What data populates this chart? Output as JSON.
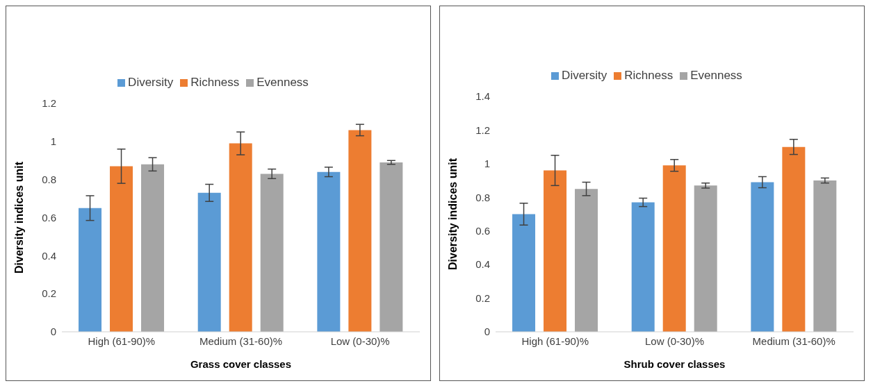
{
  "chart_data": [
    {
      "type": "bar",
      "xlabel": "Grass cover classes",
      "ylabel": "Diversity indices unit",
      "categories": [
        "High (61-90)%",
        "Medium (31-60)%",
        "Low (0-30)%"
      ],
      "ylim": [
        0,
        1.2
      ],
      "yticks": [
        0,
        0.2,
        0.4,
        0.6,
        0.8,
        1,
        1.2
      ],
      "grid": false,
      "legend": "top",
      "series": [
        {
          "name": "Diversity",
          "color": "#5b9bd5",
          "values": [
            0.65,
            0.73,
            0.84
          ],
          "errors": [
            0.065,
            0.045,
            0.025
          ]
        },
        {
          "name": "Richness",
          "color": "#ed7d31",
          "values": [
            0.87,
            0.99,
            1.06
          ],
          "errors": [
            0.09,
            0.06,
            0.03
          ]
        },
        {
          "name": "Evenness",
          "color": "#a5a5a5",
          "values": [
            0.88,
            0.83,
            0.89
          ],
          "errors": [
            0.035,
            0.025,
            0.01
          ]
        }
      ]
    },
    {
      "type": "bar",
      "xlabel": "Shrub cover classes",
      "ylabel": "Diversity indices unit",
      "categories": [
        "High (61-90)%",
        "Low (0-30)%",
        "Medium (31-60)%"
      ],
      "ylim": [
        0,
        1.4
      ],
      "yticks": [
        0,
        0.2,
        0.4,
        0.6,
        0.8,
        1,
        1.2,
        1.4
      ],
      "grid": false,
      "legend": "top",
      "series": [
        {
          "name": "Diversity",
          "color": "#5b9bd5",
          "values": [
            0.7,
            0.77,
            0.89
          ],
          "errors": [
            0.065,
            0.025,
            0.033
          ]
        },
        {
          "name": "Richness",
          "color": "#ed7d31",
          "values": [
            0.96,
            0.99,
            1.1
          ],
          "errors": [
            0.09,
            0.035,
            0.045
          ]
        },
        {
          "name": "Evenness",
          "color": "#a5a5a5",
          "values": [
            0.85,
            0.87,
            0.9
          ],
          "errors": [
            0.04,
            0.015,
            0.015
          ]
        }
      ]
    }
  ]
}
